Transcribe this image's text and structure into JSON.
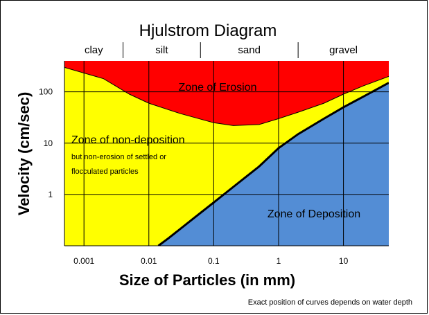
{
  "chart_data": {
    "type": "area",
    "title": "Hjulstrom Diagram",
    "xlabel": "Size of Particles (in mm)",
    "ylabel": "Velocity (cm/sec)",
    "x_scale": "log",
    "y_scale": "log",
    "xlim": [
      0.0005,
      50
    ],
    "ylim": [
      0.1,
      400
    ],
    "x_ticks": [
      "0.001",
      "0.01",
      "0.1",
      "1",
      "10"
    ],
    "x_tick_values": [
      0.001,
      0.01,
      0.1,
      1,
      10
    ],
    "y_ticks": [
      "1",
      "10",
      "100"
    ],
    "y_tick_values": [
      1,
      10,
      100
    ],
    "grid": true,
    "particle_classes": [
      {
        "label": "clay",
        "from": 0.0005,
        "to": 0.004
      },
      {
        "label": "silt",
        "from": 0.004,
        "to": 0.0625
      },
      {
        "label": "sand",
        "from": 0.0625,
        "to": 2
      },
      {
        "label": "gravel",
        "from": 2,
        "to": 50
      }
    ],
    "zones": [
      {
        "name": "Zone of Erosion",
        "color": "#ff0000"
      },
      {
        "name": "Zone of non-deposition",
        "sublabel": [
          "but non-erosion of settled or",
          "flocculated particles"
        ],
        "color": "#ffff00"
      },
      {
        "name": "Zone of Deposition",
        "color": "#538dd5"
      }
    ],
    "series": [
      {
        "name": "erosion",
        "x": [
          0.0005,
          0.002,
          0.005,
          0.01,
          0.03,
          0.1,
          0.2,
          0.5,
          1,
          2,
          5,
          10,
          20,
          50
        ],
        "y": [
          300,
          180,
          90,
          60,
          38,
          25,
          22,
          23,
          30,
          40,
          60,
          90,
          130,
          200
        ]
      },
      {
        "name": "deposition",
        "x": [
          0.014,
          0.02,
          0.05,
          0.1,
          0.2,
          0.5,
          1,
          2,
          5,
          10,
          20,
          50
        ],
        "y": [
          0.1,
          0.14,
          0.35,
          0.7,
          1.4,
          3.5,
          8,
          15,
          30,
          50,
          80,
          150
        ]
      }
    ]
  },
  "footnote": "Exact position of curves depends on water depth"
}
